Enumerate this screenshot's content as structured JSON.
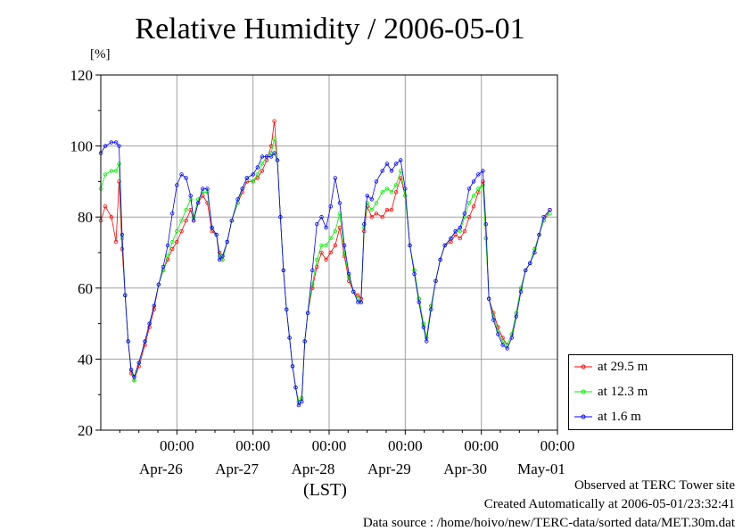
{
  "chart_data": {
    "type": "line",
    "title": "Relative Humidity / 2006-05-01",
    "ylabel": "[%]",
    "xlabel": "(LST)",
    "ylim": [
      20,
      120
    ],
    "yticks": [
      20,
      40,
      60,
      80,
      100,
      120
    ],
    "x_tick_time": "00:00",
    "x_tick_dates": [
      "Apr-26",
      "Apr-27",
      "Apr-28",
      "Apr-29",
      "Apr-30",
      "May-01"
    ],
    "x_unit": "day offset from 2006-04-26 00:00 LST",
    "xlim": [
      -1.0,
      5.0
    ],
    "grid": true,
    "legend_position": "bottom-right",
    "series": [
      {
        "name": "at 29.5 m",
        "color": "#ff0000",
        "points": [
          [
            -1.0,
            79
          ],
          [
            -0.94,
            83
          ],
          [
            -0.86,
            80
          ],
          [
            -0.8,
            73
          ],
          [
            -0.76,
            90
          ],
          [
            -0.72,
            71
          ],
          [
            -0.68,
            58
          ],
          [
            -0.64,
            45
          ],
          [
            -0.6,
            36
          ],
          [
            -0.56,
            34
          ],
          [
            -0.5,
            38
          ],
          [
            -0.42,
            44
          ],
          [
            -0.36,
            49
          ],
          [
            -0.3,
            54
          ],
          [
            -0.24,
            61
          ],
          [
            -0.18,
            65
          ],
          [
            -0.12,
            68
          ],
          [
            -0.06,
            71
          ],
          [
            0.0,
            73
          ],
          [
            0.06,
            76
          ],
          [
            0.12,
            79
          ],
          [
            0.18,
            82
          ],
          [
            0.22,
            79
          ],
          [
            0.28,
            84
          ],
          [
            0.34,
            86
          ],
          [
            0.4,
            84
          ],
          [
            0.46,
            76
          ],
          [
            0.52,
            75
          ],
          [
            0.56,
            70
          ],
          [
            0.6,
            68
          ],
          [
            0.66,
            73
          ],
          [
            0.72,
            79
          ],
          [
            0.8,
            84
          ],
          [
            0.86,
            87
          ],
          [
            0.92,
            90
          ],
          [
            1.0,
            90
          ],
          [
            1.06,
            91
          ],
          [
            1.12,
            93
          ],
          [
            1.18,
            96
          ],
          [
            1.24,
            100
          ],
          [
            1.28,
            107
          ],
          [
            1.32,
            96
          ],
          [
            1.36,
            80
          ],
          [
            1.4,
            65
          ],
          [
            1.44,
            54
          ],
          [
            1.48,
            46
          ],
          [
            1.52,
            38
          ],
          [
            1.56,
            32
          ],
          [
            1.6,
            28
          ],
          [
            1.64,
            29
          ],
          [
            1.68,
            45
          ],
          [
            1.72,
            53
          ],
          [
            1.78,
            60
          ],
          [
            1.84,
            66
          ],
          [
            1.9,
            70
          ],
          [
            1.96,
            68
          ],
          [
            2.02,
            70
          ],
          [
            2.08,
            72
          ],
          [
            2.14,
            77
          ],
          [
            2.2,
            69
          ],
          [
            2.26,
            62
          ],
          [
            2.32,
            59
          ],
          [
            2.38,
            58
          ],
          [
            2.42,
            57
          ],
          [
            2.46,
            76
          ],
          [
            2.5,
            83
          ],
          [
            2.56,
            80
          ],
          [
            2.62,
            81
          ],
          [
            2.7,
            80
          ],
          [
            2.76,
            82
          ],
          [
            2.82,
            82
          ],
          [
            2.88,
            87
          ],
          [
            2.94,
            91
          ],
          [
            3.0,
            86
          ],
          [
            3.06,
            72
          ],
          [
            3.12,
            65
          ],
          [
            3.18,
            57
          ],
          [
            3.24,
            50
          ],
          [
            3.28,
            46
          ],
          [
            3.34,
            55
          ],
          [
            3.4,
            62
          ],
          [
            3.46,
            68
          ],
          [
            3.52,
            72
          ],
          [
            3.6,
            73
          ],
          [
            3.66,
            75
          ],
          [
            3.72,
            74
          ],
          [
            3.78,
            76
          ],
          [
            3.84,
            80
          ],
          [
            3.9,
            83
          ],
          [
            3.96,
            87
          ],
          [
            4.02,
            90
          ],
          [
            4.06,
            74
          ],
          [
            4.1,
            57
          ],
          [
            4.16,
            53
          ],
          [
            4.22,
            49
          ],
          [
            4.28,
            46
          ],
          [
            4.34,
            44
          ],
          [
            4.4,
            47
          ],
          [
            4.46,
            53
          ],
          [
            4.52,
            60
          ],
          [
            4.58,
            65
          ],
          [
            4.64,
            67
          ],
          [
            4.7,
            71
          ],
          [
            4.76,
            75
          ],
          [
            4.82,
            79
          ],
          [
            4.9,
            82
          ]
        ]
      },
      {
        "name": "at 12.3 m",
        "color": "#00ee00",
        "points": [
          [
            -1.0,
            88
          ],
          [
            -0.94,
            92
          ],
          [
            -0.86,
            93
          ],
          [
            -0.8,
            93
          ],
          [
            -0.76,
            95
          ],
          [
            -0.72,
            74
          ],
          [
            -0.68,
            58
          ],
          [
            -0.64,
            45
          ],
          [
            -0.6,
            37
          ],
          [
            -0.56,
            34
          ],
          [
            -0.5,
            39
          ],
          [
            -0.42,
            45
          ],
          [
            -0.36,
            50
          ],
          [
            -0.3,
            55
          ],
          [
            -0.24,
            61
          ],
          [
            -0.18,
            65
          ],
          [
            -0.12,
            69
          ],
          [
            -0.06,
            73
          ],
          [
            0.0,
            76
          ],
          [
            0.06,
            79
          ],
          [
            0.12,
            82
          ],
          [
            0.18,
            85
          ],
          [
            0.22,
            80
          ],
          [
            0.28,
            85
          ],
          [
            0.34,
            87
          ],
          [
            0.4,
            87
          ],
          [
            0.46,
            77
          ],
          [
            0.52,
            75
          ],
          [
            0.56,
            69
          ],
          [
            0.6,
            68
          ],
          [
            0.66,
            73
          ],
          [
            0.72,
            79
          ],
          [
            0.8,
            84
          ],
          [
            0.86,
            88
          ],
          [
            0.92,
            91
          ],
          [
            1.0,
            90
          ],
          [
            1.06,
            92
          ],
          [
            1.12,
            95
          ],
          [
            1.18,
            97
          ],
          [
            1.24,
            98
          ],
          [
            1.28,
            102
          ],
          [
            1.32,
            96
          ],
          [
            1.36,
            80
          ],
          [
            1.4,
            65
          ],
          [
            1.44,
            54
          ],
          [
            1.48,
            46
          ],
          [
            1.52,
            38
          ],
          [
            1.56,
            32
          ],
          [
            1.6,
            28
          ],
          [
            1.64,
            29
          ],
          [
            1.68,
            45
          ],
          [
            1.72,
            53
          ],
          [
            1.78,
            61
          ],
          [
            1.84,
            68
          ],
          [
            1.9,
            72
          ],
          [
            1.96,
            72
          ],
          [
            2.02,
            74
          ],
          [
            2.08,
            76
          ],
          [
            2.14,
            81
          ],
          [
            2.2,
            70
          ],
          [
            2.26,
            63
          ],
          [
            2.32,
            59
          ],
          [
            2.38,
            57
          ],
          [
            2.42,
            56
          ],
          [
            2.46,
            77
          ],
          [
            2.5,
            84
          ],
          [
            2.56,
            82
          ],
          [
            2.62,
            84
          ],
          [
            2.7,
            87
          ],
          [
            2.76,
            88
          ],
          [
            2.82,
            87
          ],
          [
            2.88,
            89
          ],
          [
            2.94,
            93
          ],
          [
            3.0,
            86
          ],
          [
            3.06,
            72
          ],
          [
            3.12,
            65
          ],
          [
            3.18,
            57
          ],
          [
            3.24,
            50
          ],
          [
            3.28,
            46
          ],
          [
            3.34,
            55
          ],
          [
            3.4,
            62
          ],
          [
            3.46,
            68
          ],
          [
            3.52,
            72
          ],
          [
            3.6,
            74
          ],
          [
            3.66,
            76
          ],
          [
            3.72,
            76
          ],
          [
            3.78,
            80
          ],
          [
            3.84,
            84
          ],
          [
            3.9,
            86
          ],
          [
            3.96,
            88
          ],
          [
            4.02,
            89
          ],
          [
            4.06,
            74
          ],
          [
            4.1,
            57
          ],
          [
            4.16,
            52
          ],
          [
            4.22,
            48
          ],
          [
            4.28,
            45
          ],
          [
            4.34,
            44
          ],
          [
            4.4,
            47
          ],
          [
            4.46,
            53
          ],
          [
            4.52,
            60
          ],
          [
            4.58,
            65
          ],
          [
            4.64,
            67
          ],
          [
            4.7,
            71
          ],
          [
            4.76,
            75
          ],
          [
            4.82,
            79
          ],
          [
            4.9,
            81
          ]
        ]
      },
      {
        "name": "at 1.6 m",
        "color": "#0000ff",
        "points": [
          [
            -1.0,
            98
          ],
          [
            -0.94,
            100
          ],
          [
            -0.86,
            101
          ],
          [
            -0.8,
            101
          ],
          [
            -0.76,
            100
          ],
          [
            -0.72,
            75
          ],
          [
            -0.68,
            58
          ],
          [
            -0.64,
            45
          ],
          [
            -0.6,
            37
          ],
          [
            -0.56,
            35
          ],
          [
            -0.5,
            39
          ],
          [
            -0.42,
            45
          ],
          [
            -0.36,
            50
          ],
          [
            -0.3,
            55
          ],
          [
            -0.24,
            61
          ],
          [
            -0.18,
            66
          ],
          [
            -0.12,
            72
          ],
          [
            -0.06,
            81
          ],
          [
            0.0,
            89
          ],
          [
            0.06,
            92
          ],
          [
            0.12,
            91
          ],
          [
            0.18,
            86
          ],
          [
            0.22,
            79
          ],
          [
            0.28,
            84
          ],
          [
            0.34,
            88
          ],
          [
            0.4,
            88
          ],
          [
            0.46,
            77
          ],
          [
            0.52,
            75
          ],
          [
            0.56,
            68
          ],
          [
            0.6,
            69
          ],
          [
            0.66,
            73
          ],
          [
            0.72,
            79
          ],
          [
            0.8,
            85
          ],
          [
            0.86,
            88
          ],
          [
            0.92,
            91
          ],
          [
            1.0,
            92
          ],
          [
            1.06,
            94
          ],
          [
            1.12,
            97
          ],
          [
            1.18,
            97
          ],
          [
            1.24,
            97
          ],
          [
            1.28,
            98
          ],
          [
            1.32,
            96
          ],
          [
            1.36,
            80
          ],
          [
            1.4,
            65
          ],
          [
            1.44,
            54
          ],
          [
            1.48,
            46
          ],
          [
            1.52,
            38
          ],
          [
            1.56,
            32
          ],
          [
            1.6,
            27
          ],
          [
            1.64,
            28
          ],
          [
            1.68,
            45
          ],
          [
            1.72,
            53
          ],
          [
            1.78,
            65
          ],
          [
            1.84,
            78
          ],
          [
            1.9,
            80
          ],
          [
            1.96,
            77
          ],
          [
            2.02,
            83
          ],
          [
            2.08,
            91
          ],
          [
            2.14,
            84
          ],
          [
            2.2,
            72
          ],
          [
            2.26,
            64
          ],
          [
            2.32,
            59
          ],
          [
            2.38,
            56
          ],
          [
            2.42,
            56
          ],
          [
            2.46,
            78
          ],
          [
            2.5,
            86
          ],
          [
            2.56,
            85
          ],
          [
            2.62,
            90
          ],
          [
            2.7,
            93
          ],
          [
            2.76,
            95
          ],
          [
            2.82,
            93
          ],
          [
            2.88,
            95
          ],
          [
            2.94,
            96
          ],
          [
            3.0,
            88
          ],
          [
            3.06,
            72
          ],
          [
            3.12,
            64
          ],
          [
            3.18,
            56
          ],
          [
            3.24,
            49
          ],
          [
            3.28,
            45
          ],
          [
            3.34,
            54
          ],
          [
            3.4,
            62
          ],
          [
            3.46,
            68
          ],
          [
            3.52,
            72
          ],
          [
            3.6,
            74
          ],
          [
            3.66,
            76
          ],
          [
            3.72,
            77
          ],
          [
            3.78,
            81
          ],
          [
            3.84,
            88
          ],
          [
            3.9,
            90
          ],
          [
            3.96,
            92
          ],
          [
            4.02,
            93
          ],
          [
            4.06,
            78
          ],
          [
            4.1,
            57
          ],
          [
            4.16,
            51
          ],
          [
            4.22,
            47
          ],
          [
            4.28,
            44
          ],
          [
            4.34,
            43
          ],
          [
            4.4,
            46
          ],
          [
            4.46,
            52
          ],
          [
            4.52,
            59
          ],
          [
            4.58,
            65
          ],
          [
            4.64,
            67
          ],
          [
            4.7,
            70
          ],
          [
            4.76,
            75
          ],
          [
            4.82,
            80
          ],
          [
            4.9,
            82
          ]
        ]
      }
    ]
  },
  "footer": {
    "site": "Observed at TERC Tower site",
    "created": "Created Automatically at 2006-05-01/23:32:41",
    "source": "Data source : /home/hoivo/new/TERC-data/sorted  data/MET.30m.dat"
  }
}
